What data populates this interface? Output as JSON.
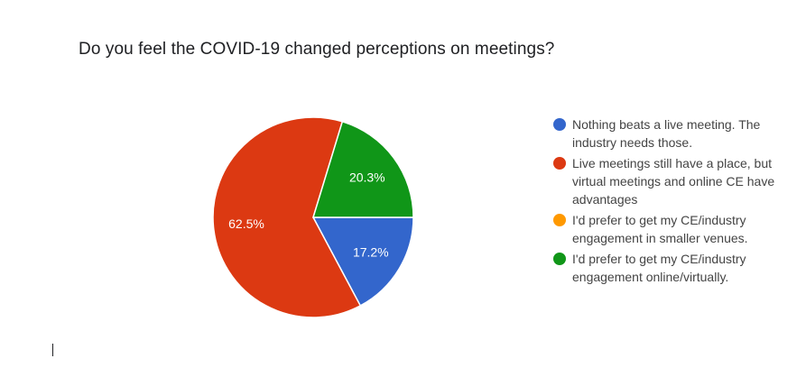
{
  "chart_data": {
    "type": "pie",
    "title": "Do you feel the COVID-19 changed perceptions on meetings?",
    "start_angle_deg": 90,
    "direction": "clockwise",
    "legend_position": "right",
    "series": [
      {
        "name": "Nothing beats a live meeting. The industry needs those.",
        "value": 17.2,
        "label": "17.2%",
        "color": "#3366cc"
      },
      {
        "name": "Live meetings still have a place, but virtual meetings and online CE have advantages",
        "value": 62.5,
        "label": "62.5%",
        "color": "#dc3912"
      },
      {
        "name": "I'd prefer to get my CE/industry engagement in smaller venues.",
        "value": 0,
        "label": "",
        "color": "#ff9900"
      },
      {
        "name": "I'd prefer to get my CE/industry engagement online/virtually.",
        "value": 20.3,
        "label": "20.3%",
        "color": "#109618"
      }
    ]
  }
}
